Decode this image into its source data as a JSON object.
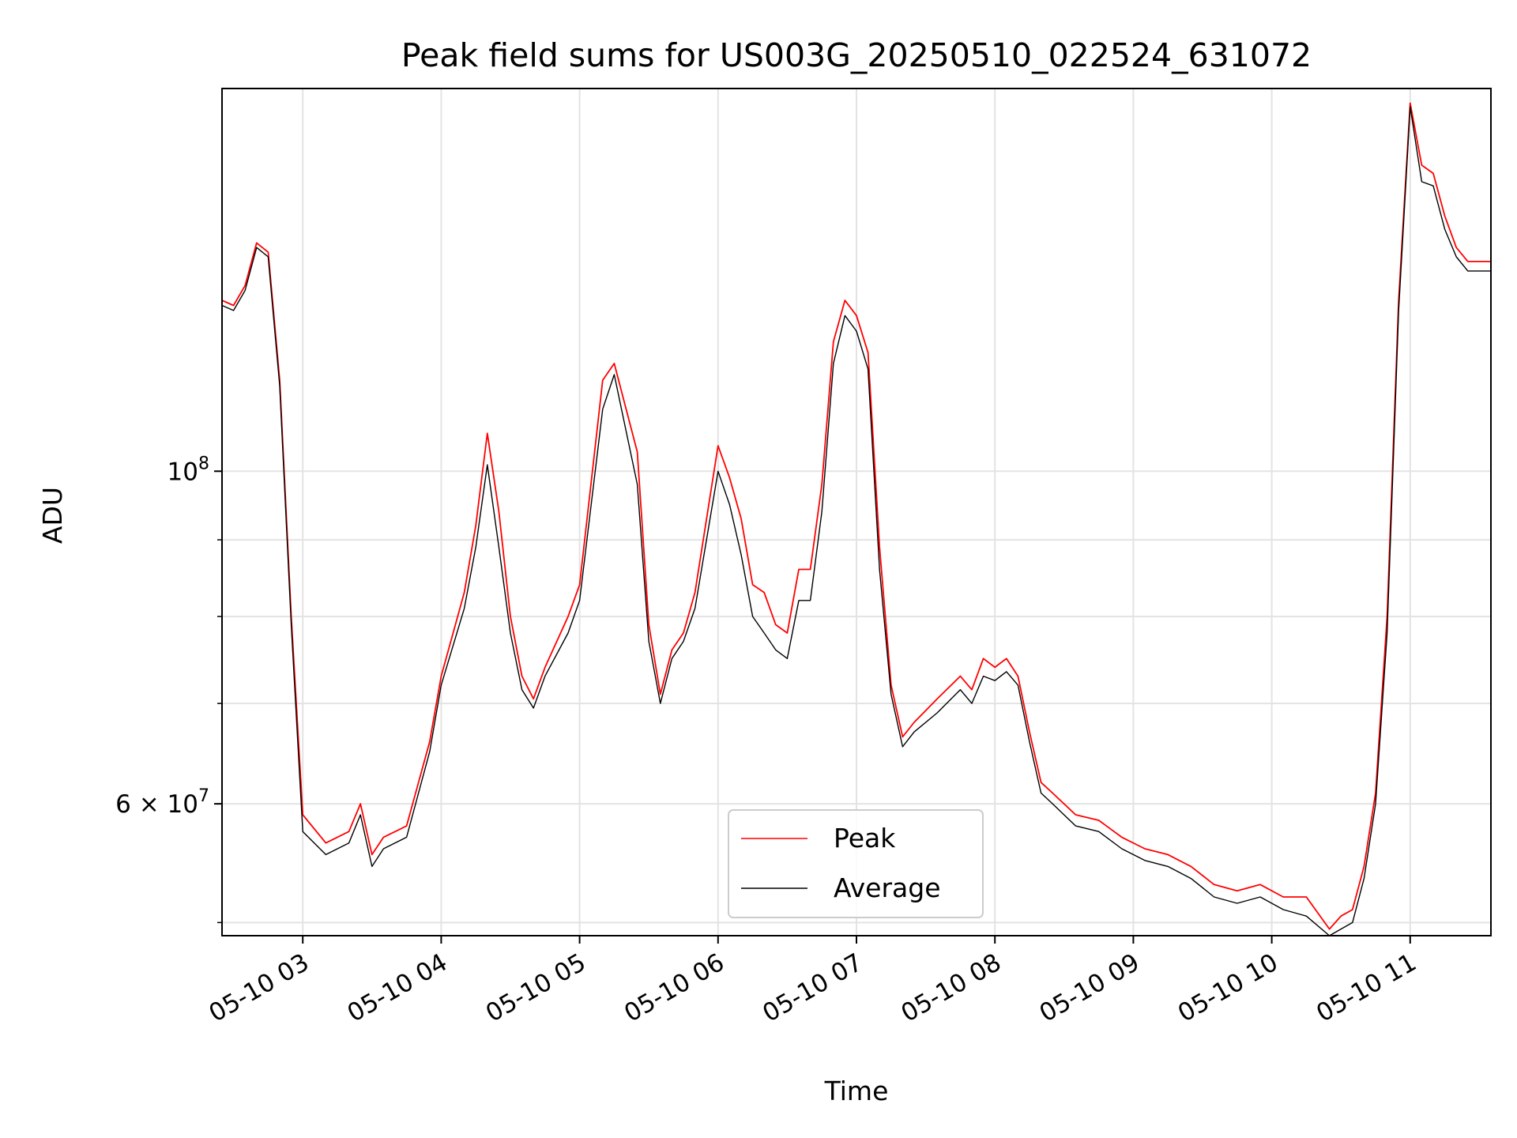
{
  "chart_data": {
    "type": "line",
    "title": "Peak field sums for US003G_20250510_022524_631072",
    "xlabel": "Time",
    "ylabel": "ADU",
    "yscale": "log",
    "ylim": [
      49000000,
      180000000
    ],
    "xlim": [
      "05-10 02:25",
      "05-10 11:35"
    ],
    "grid": true,
    "legend_position": "lower-center",
    "x_tick_labels": [
      "05-10 03",
      "05-10 04",
      "05-10 05",
      "05-10 06",
      "05-10 07",
      "05-10 08",
      "05-10 09",
      "05-10 10",
      "05-10 11"
    ],
    "y_tick_labels": [
      {
        "value": 60000000,
        "mantissa": "6",
        "exponent": "7"
      },
      {
        "value": 100000000,
        "mantissa": "",
        "exponent": "8"
      }
    ],
    "x": [
      "05-10 02:25",
      "05-10 02:30",
      "05-10 02:35",
      "05-10 02:40",
      "05-10 02:45",
      "05-10 02:50",
      "05-10 02:55",
      "05-10 03:00",
      "05-10 03:10",
      "05-10 03:20",
      "05-10 03:25",
      "05-10 03:30",
      "05-10 03:35",
      "05-10 03:45",
      "05-10 03:55",
      "05-10 04:00",
      "05-10 04:10",
      "05-10 04:15",
      "05-10 04:20",
      "05-10 04:25",
      "05-10 04:30",
      "05-10 04:35",
      "05-10 04:40",
      "05-10 04:45",
      "05-10 04:55",
      "05-10 05:00",
      "05-10 05:10",
      "05-10 05:15",
      "05-10 05:25",
      "05-10 05:30",
      "05-10 05:35",
      "05-10 05:40",
      "05-10 05:45",
      "05-10 05:50",
      "05-10 06:00",
      "05-10 06:05",
      "05-10 06:10",
      "05-10 06:15",
      "05-10 06:20",
      "05-10 06:25",
      "05-10 06:30",
      "05-10 06:35",
      "05-10 06:40",
      "05-10 06:45",
      "05-10 06:50",
      "05-10 06:55",
      "05-10 07:00",
      "05-10 07:05",
      "05-10 07:10",
      "05-10 07:15",
      "05-10 07:20",
      "05-10 07:25",
      "05-10 07:35",
      "05-10 07:45",
      "05-10 07:50",
      "05-10 07:55",
      "05-10 08:00",
      "05-10 08:05",
      "05-10 08:10",
      "05-10 08:15",
      "05-10 08:20",
      "05-10 08:25",
      "05-10 08:35",
      "05-10 08:45",
      "05-10 08:55",
      "05-10 09:05",
      "05-10 09:15",
      "05-10 09:25",
      "05-10 09:35",
      "05-10 09:45",
      "05-10 09:55",
      "05-10 10:05",
      "05-10 10:15",
      "05-10 10:25",
      "05-10 10:30",
      "05-10 10:35",
      "05-10 10:40",
      "05-10 10:45",
      "05-10 10:50",
      "05-10 10:55",
      "05-10 11:00",
      "05-10 11:05",
      "05-10 11:10",
      "05-10 11:15",
      "05-10 11:20",
      "05-10 11:25",
      "05-10 11:30",
      "05-10 11:35"
    ],
    "series": [
      {
        "name": "Peak",
        "color": "#ff0000",
        "values": [
          130000000,
          129000000,
          133000000,
          142000000,
          140000000,
          115000000,
          80000000,
          59000000,
          56500000,
          57500000,
          60000000,
          55500000,
          57000000,
          58000000,
          66000000,
          73000000,
          83000000,
          92000000,
          106000000,
          94000000,
          80000000,
          73000000,
          70500000,
          74000000,
          80000000,
          84000000,
          115000000,
          118000000,
          103000000,
          79000000,
          71000000,
          76000000,
          78000000,
          83000000,
          104000000,
          99000000,
          93000000,
          84000000,
          83000000,
          79000000,
          78000000,
          86000000,
          86000000,
          98000000,
          122000000,
          130000000,
          127000000,
          120000000,
          89000000,
          72000000,
          66500000,
          68000000,
          70500000,
          73000000,
          71500000,
          75000000,
          74000000,
          75000000,
          73000000,
          67000000,
          62000000,
          61000000,
          59000000,
          58500000,
          57000000,
          56000000,
          55500000,
          54500000,
          53000000,
          52500000,
          53000000,
          52000000,
          52000000,
          49500000,
          50500000,
          51000000,
          54500000,
          61000000,
          80000000,
          130000000,
          176000000,
          160000000,
          158000000,
          148000000,
          141000000,
          138000000,
          138000000,
          138000000
        ]
      },
      {
        "name": "Average",
        "color": "#000000",
        "values": [
          129000000,
          128000000,
          132000000,
          141000000,
          139000000,
          114000000,
          79000000,
          57500000,
          55500000,
          56500000,
          59000000,
          54500000,
          56000000,
          57000000,
          65000000,
          72000000,
          81000000,
          89000000,
          101000000,
          89000000,
          78000000,
          71500000,
          69500000,
          73000000,
          78000000,
          82000000,
          110000000,
          116000000,
          98000000,
          77000000,
          70000000,
          75000000,
          77000000,
          81000000,
          100000000,
          95000000,
          88000000,
          80000000,
          78000000,
          76000000,
          75000000,
          82000000,
          82000000,
          94000000,
          118000000,
          127000000,
          124000000,
          117000000,
          86000000,
          71000000,
          65500000,
          67000000,
          69000000,
          71500000,
          70000000,
          73000000,
          72500000,
          73500000,
          72000000,
          66000000,
          61000000,
          60000000,
          58000000,
          57500000,
          56000000,
          55000000,
          54500000,
          53500000,
          52000000,
          51500000,
          52000000,
          51000000,
          50500000,
          49000000,
          49500000,
          50000000,
          53500000,
          60000000,
          78000000,
          128000000,
          175000000,
          156000000,
          155000000,
          145000000,
          139000000,
          136000000,
          136000000,
          136000000
        ]
      }
    ]
  }
}
